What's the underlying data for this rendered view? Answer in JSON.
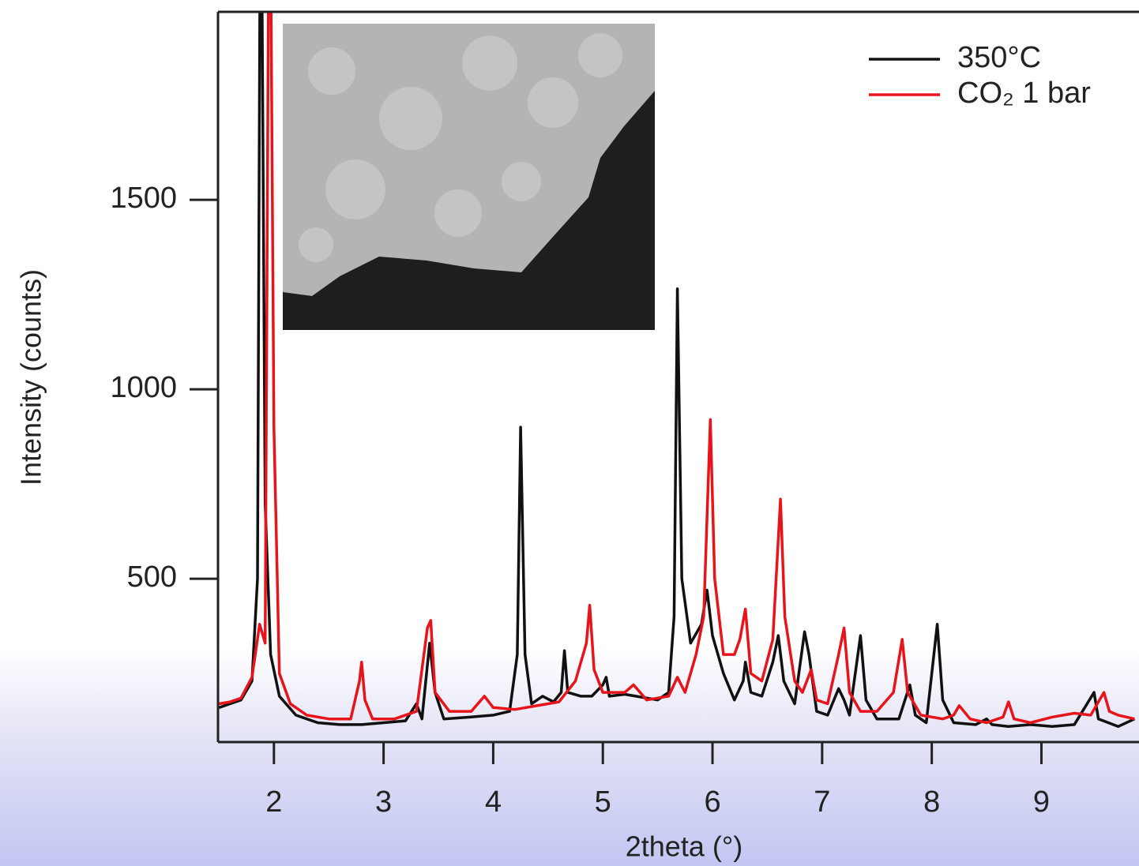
{
  "chart_data": {
    "type": "line",
    "xlabel": "2theta (°)",
    "ylabel": "Intensity (counts)",
    "xlim": [
      1.49,
      9.89
    ],
    "ylim": [
      69,
      1996
    ],
    "xticks": [
      2,
      3,
      4,
      5,
      6,
      7,
      8,
      9
    ],
    "yticks": [
      500,
      1000,
      1500
    ],
    "legend": "top-right",
    "series": [
      {
        "name": "350°C",
        "color": "#111111",
        "x": [
          1.5,
          1.6,
          1.7,
          1.8,
          1.85,
          1.88,
          1.92,
          1.97,
          2.05,
          2.2,
          2.4,
          2.6,
          2.8,
          3.0,
          3.2,
          3.3,
          3.35,
          3.42,
          3.47,
          3.55,
          3.8,
          4.0,
          4.15,
          4.22,
          4.25,
          4.29,
          4.35,
          4.45,
          4.55,
          4.62,
          4.65,
          4.68,
          4.8,
          4.9,
          5.0,
          5.03,
          5.06,
          5.2,
          5.3,
          5.5,
          5.6,
          5.65,
          5.68,
          5.72,
          5.8,
          5.9,
          5.95,
          6.0,
          6.1,
          6.2,
          6.28,
          6.3,
          6.35,
          6.45,
          6.55,
          6.6,
          6.65,
          6.75,
          6.84,
          6.88,
          6.95,
          7.05,
          7.15,
          7.2,
          7.25,
          7.35,
          7.4,
          7.5,
          7.7,
          7.8,
          7.85,
          7.95,
          8.05,
          8.1,
          8.2,
          8.4,
          8.5,
          8.55,
          8.7,
          8.9,
          9.1,
          9.3,
          9.48,
          9.52,
          9.7,
          9.85
        ],
        "values": [
          160,
          170,
          180,
          230,
          500,
          2600,
          700,
          300,
          190,
          140,
          120,
          115,
          115,
          120,
          125,
          170,
          130,
          330,
          200,
          130,
          135,
          140,
          150,
          300,
          900,
          300,
          170,
          190,
          175,
          200,
          310,
          200,
          190,
          190,
          220,
          240,
          190,
          195,
          190,
          180,
          200,
          400,
          1265,
          500,
          330,
          380,
          470,
          350,
          250,
          180,
          230,
          280,
          200,
          190,
          280,
          350,
          230,
          170,
          360,
          300,
          150,
          140,
          210,
          180,
          140,
          350,
          180,
          130,
          130,
          220,
          140,
          120,
          380,
          180,
          120,
          115,
          130,
          115,
          110,
          115,
          110,
          115,
          200,
          130,
          110,
          130
        ]
      },
      {
        "name": "CO₂ 1 bar",
        "color": "#e8141c",
        "x": [
          1.5,
          1.6,
          1.7,
          1.8,
          1.87,
          1.92,
          1.96,
          2.0,
          2.05,
          2.15,
          2.3,
          2.5,
          2.7,
          2.78,
          2.8,
          2.83,
          2.9,
          3.1,
          3.3,
          3.4,
          3.43,
          3.47,
          3.6,
          3.8,
          3.92,
          4.0,
          4.2,
          4.4,
          4.6,
          4.75,
          4.85,
          4.88,
          4.92,
          5.0,
          5.2,
          5.28,
          5.4,
          5.6,
          5.68,
          5.75,
          5.85,
          5.92,
          5.98,
          6.02,
          6.1,
          6.2,
          6.25,
          6.3,
          6.35,
          6.45,
          6.55,
          6.62,
          6.66,
          6.75,
          6.82,
          6.9,
          6.95,
          7.05,
          7.15,
          7.2,
          7.25,
          7.35,
          7.5,
          7.65,
          7.73,
          7.78,
          7.9,
          8.1,
          8.2,
          8.25,
          8.35,
          8.5,
          8.65,
          8.7,
          8.75,
          8.9,
          9.1,
          9.3,
          9.45,
          9.57,
          9.62,
          9.7,
          9.85
        ],
        "values": [
          170,
          175,
          185,
          240,
          380,
          330,
          2600,
          900,
          250,
          170,
          140,
          130,
          130,
          230,
          280,
          180,
          130,
          130,
          150,
          370,
          390,
          200,
          150,
          150,
          190,
          160,
          155,
          165,
          175,
          230,
          330,
          430,
          260,
          200,
          200,
          220,
          180,
          190,
          240,
          200,
          300,
          400,
          920,
          500,
          300,
          300,
          340,
          420,
          250,
          230,
          340,
          710,
          400,
          230,
          200,
          260,
          180,
          170,
          300,
          370,
          200,
          150,
          150,
          200,
          340,
          200,
          140,
          130,
          140,
          165,
          130,
          120,
          135,
          175,
          130,
          120,
          135,
          145,
          140,
          200,
          150,
          140,
          130
        ]
      }
    ]
  }
}
